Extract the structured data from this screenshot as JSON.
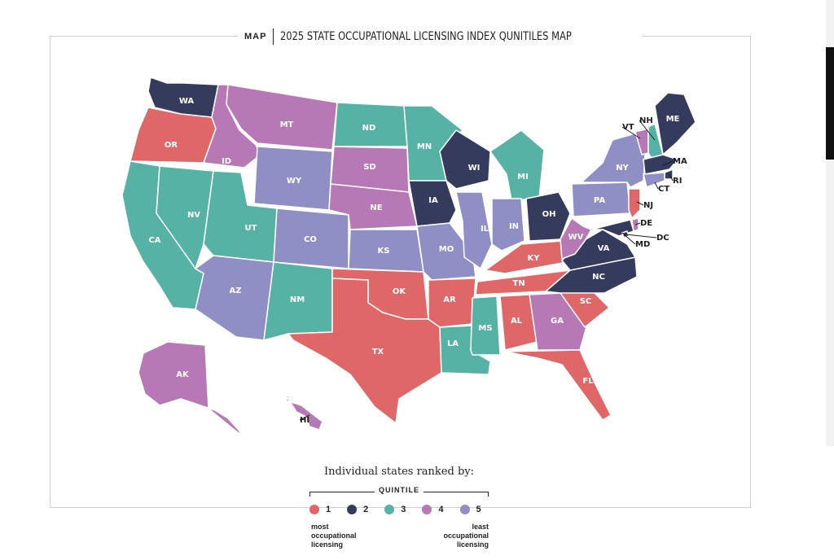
{
  "header": {
    "tag": "MAP",
    "title": "2025 STATE OCCUPATIONAL LICENSING INDEX QUNITILES MAP"
  },
  "colors": {
    "q1": "#e06767",
    "q2": "#353b5c",
    "q3": "#56b2a5",
    "q4": "#b778b6",
    "q5": "#8f8fc6"
  },
  "legend": {
    "title": "Individual states ranked by:",
    "quintile_label": "QUINTILE",
    "items": [
      {
        "label": "1",
        "color": "#e06767"
      },
      {
        "label": "2",
        "color": "#353b5c"
      },
      {
        "label": "3",
        "color": "#56b2a5"
      },
      {
        "label": "4",
        "color": "#b778b6"
      },
      {
        "label": "5",
        "color": "#8f8fc6"
      }
    ],
    "low_note": [
      "most",
      "occupational",
      "licensing"
    ],
    "high_note": [
      "least",
      "occupational",
      "licensing"
    ]
  },
  "states": [
    {
      "abbr": "WA",
      "q": 2
    },
    {
      "abbr": "OR",
      "q": 1
    },
    {
      "abbr": "CA",
      "q": 3
    },
    {
      "abbr": "ID",
      "q": 4
    },
    {
      "abbr": "NV",
      "q": 3
    },
    {
      "abbr": "MT",
      "q": 4
    },
    {
      "abbr": "WY",
      "q": 5
    },
    {
      "abbr": "UT",
      "q": 3
    },
    {
      "abbr": "AZ",
      "q": 5
    },
    {
      "abbr": "CO",
      "q": 5
    },
    {
      "abbr": "NM",
      "q": 3
    },
    {
      "abbr": "ND",
      "q": 3
    },
    {
      "abbr": "SD",
      "q": 4
    },
    {
      "abbr": "NE",
      "q": 4
    },
    {
      "abbr": "KS",
      "q": 5
    },
    {
      "abbr": "OK",
      "q": 1
    },
    {
      "abbr": "TX",
      "q": 1
    },
    {
      "abbr": "MN",
      "q": 3
    },
    {
      "abbr": "IA",
      "q": 2
    },
    {
      "abbr": "MO",
      "q": 5
    },
    {
      "abbr": "AR",
      "q": 1
    },
    {
      "abbr": "LA",
      "q": 3
    },
    {
      "abbr": "WI",
      "q": 2
    },
    {
      "abbr": "IL",
      "q": 5
    },
    {
      "abbr": "MI",
      "q": 3
    },
    {
      "abbr": "IN",
      "q": 5
    },
    {
      "abbr": "OH",
      "q": 2
    },
    {
      "abbr": "KY",
      "q": 1
    },
    {
      "abbr": "TN",
      "q": 1
    },
    {
      "abbr": "MS",
      "q": 3
    },
    {
      "abbr": "AL",
      "q": 1
    },
    {
      "abbr": "GA",
      "q": 4
    },
    {
      "abbr": "FL",
      "q": 1
    },
    {
      "abbr": "SC",
      "q": 1
    },
    {
      "abbr": "NC",
      "q": 2
    },
    {
      "abbr": "VA",
      "q": 2
    },
    {
      "abbr": "WV",
      "q": 4
    },
    {
      "abbr": "PA",
      "q": 5
    },
    {
      "abbr": "NY",
      "q": 5
    },
    {
      "abbr": "VT",
      "q": 4
    },
    {
      "abbr": "NH",
      "q": 3
    },
    {
      "abbr": "ME",
      "q": 2
    },
    {
      "abbr": "MA",
      "q": 2
    },
    {
      "abbr": "RI",
      "q": 2
    },
    {
      "abbr": "CT",
      "q": 5
    },
    {
      "abbr": "NJ",
      "q": 1
    },
    {
      "abbr": "DE",
      "q": 4
    },
    {
      "abbr": "MD",
      "q": 2
    },
    {
      "abbr": "DC",
      "q": 2
    },
    {
      "abbr": "AK",
      "q": 4
    },
    {
      "abbr": "HI",
      "q": 4
    }
  ]
}
